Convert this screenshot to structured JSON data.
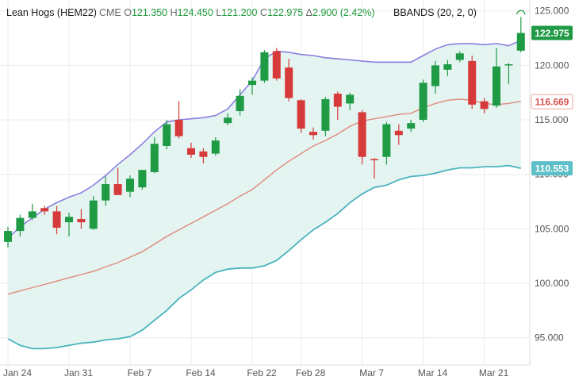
{
  "header": {
    "symbol": "Lean Hogs (HEM22)",
    "exchange": "CME",
    "open_key": "O",
    "open": "121.350",
    "high_key": "H",
    "high": "124.450",
    "low_key": "L",
    "low": "121.200",
    "close_key": "C",
    "close": "122.975",
    "change_key": "Δ",
    "change": "2.900 (2.42%)",
    "indicator": "BBANDS (20, 2, 0)"
  },
  "colors": {
    "up": "#1f9a45",
    "down": "#d63a3a",
    "upper_band": "#8c7ee0",
    "middle_band": "#e08a7c",
    "lower_band": "#49b3be",
    "band_fill": "#e4f4f1",
    "price_badge": "#1f9a45",
    "middle_badge_text": "#d9534f",
    "lower_badge": "#5dbfc7",
    "grid": "#ececec",
    "axis_text": "#555555"
  },
  "chart_data": {
    "type": "candlestick",
    "y_axis": {
      "min": 92.5,
      "max": 126,
      "ticks": [
        "95.000",
        "100.000",
        "105.000",
        "110.000",
        "115.000",
        "120.000",
        "125.000"
      ],
      "position": "right"
    },
    "x_axis": {
      "labels": [
        "Jan 24",
        "Jan 31",
        "Feb 7",
        "Feb 14",
        "Feb 22",
        "Feb 28",
        "Mar 7",
        "Mar 14",
        "Mar 21"
      ]
    },
    "grid": true,
    "candles": [
      {
        "date": "Jan 24",
        "o": 103.8,
        "h": 105.2,
        "l": 103.3,
        "c": 104.8
      },
      {
        "date": "Jan 25",
        "o": 104.8,
        "h": 106.3,
        "l": 104.3,
        "c": 106.0
      },
      {
        "date": "Jan 26",
        "o": 106.0,
        "h": 107.3,
        "l": 105.8,
        "c": 106.6
      },
      {
        "date": "Jan 27",
        "o": 106.9,
        "h": 107.1,
        "l": 106.3,
        "c": 106.6
      },
      {
        "date": "Jan 28",
        "o": 106.6,
        "h": 107.1,
        "l": 104.5,
        "c": 105.1
      },
      {
        "date": "Jan 31",
        "o": 105.6,
        "h": 106.5,
        "l": 104.3,
        "c": 106.1
      },
      {
        "date": "Feb 1",
        "o": 105.9,
        "h": 106.8,
        "l": 105.0,
        "c": 105.6
      },
      {
        "date": "Feb 2",
        "o": 105.0,
        "h": 108.0,
        "l": 104.9,
        "c": 107.6
      },
      {
        "date": "Feb 3",
        "o": 107.6,
        "h": 109.8,
        "l": 107.1,
        "c": 109.1
      },
      {
        "date": "Feb 4",
        "o": 109.1,
        "h": 110.6,
        "l": 108.1,
        "c": 108.1
      },
      {
        "date": "Feb 7",
        "o": 108.4,
        "h": 109.9,
        "l": 107.9,
        "c": 109.6
      },
      {
        "date": "Feb 8",
        "o": 108.8,
        "h": 110.4,
        "l": 108.6,
        "c": 110.4
      },
      {
        "date": "Feb 9",
        "o": 110.2,
        "h": 113.4,
        "l": 110.1,
        "c": 112.8
      },
      {
        "date": "Feb 10",
        "o": 112.6,
        "h": 115.0,
        "l": 112.3,
        "c": 114.6
      },
      {
        "date": "Feb 11",
        "o": 115.0,
        "h": 116.7,
        "l": 113.3,
        "c": 113.5
      },
      {
        "date": "Feb 14",
        "o": 112.4,
        "h": 112.9,
        "l": 111.5,
        "c": 111.8
      },
      {
        "date": "Feb 15",
        "o": 112.1,
        "h": 112.4,
        "l": 111.0,
        "c": 111.6
      },
      {
        "date": "Feb 16",
        "o": 111.9,
        "h": 113.4,
        "l": 111.7,
        "c": 113.1
      },
      {
        "date": "Feb 17",
        "o": 114.7,
        "h": 115.6,
        "l": 114.5,
        "c": 115.2
      },
      {
        "date": "Feb 18",
        "o": 115.8,
        "h": 117.8,
        "l": 115.4,
        "c": 117.2
      },
      {
        "date": "Feb 22",
        "o": 118.2,
        "h": 118.9,
        "l": 117.3,
        "c": 118.6
      },
      {
        "date": "Feb 23",
        "o": 118.6,
        "h": 121.4,
        "l": 118.4,
        "c": 121.2
      },
      {
        "date": "Feb 24",
        "o": 121.3,
        "h": 121.6,
        "l": 118.6,
        "c": 118.8
      },
      {
        "date": "Feb 25",
        "o": 119.8,
        "h": 120.6,
        "l": 116.7,
        "c": 117.0
      },
      {
        "date": "Feb 28",
        "o": 116.8,
        "h": 116.9,
        "l": 113.8,
        "c": 114.2
      },
      {
        "date": "Mar 1",
        "o": 113.9,
        "h": 114.3,
        "l": 113.2,
        "c": 113.6
      },
      {
        "date": "Mar 2",
        "o": 114.0,
        "h": 117.1,
        "l": 113.5,
        "c": 116.9
      },
      {
        "date": "Mar 3",
        "o": 117.4,
        "h": 117.6,
        "l": 115.0,
        "c": 116.2
      },
      {
        "date": "Mar 4",
        "o": 116.5,
        "h": 117.5,
        "l": 115.9,
        "c": 117.3
      },
      {
        "date": "Mar 7",
        "o": 115.7,
        "h": 115.9,
        "l": 110.9,
        "c": 111.6
      },
      {
        "date": "Mar 8",
        "o": 111.4,
        "h": 111.5,
        "l": 109.6,
        "c": 111.3
      },
      {
        "date": "Mar 9",
        "o": 111.6,
        "h": 114.8,
        "l": 110.9,
        "c": 114.6
      },
      {
        "date": "Mar 10",
        "o": 114.0,
        "h": 114.6,
        "l": 112.7,
        "c": 113.6
      },
      {
        "date": "Mar 11",
        "o": 114.2,
        "h": 115.0,
        "l": 113.9,
        "c": 114.7
      },
      {
        "date": "Mar 14",
        "o": 115.0,
        "h": 118.7,
        "l": 114.8,
        "c": 118.4
      },
      {
        "date": "Mar 15",
        "o": 118.1,
        "h": 120.4,
        "l": 117.4,
        "c": 120.0
      },
      {
        "date": "Mar 16",
        "o": 119.6,
        "h": 120.5,
        "l": 119.0,
        "c": 120.1
      },
      {
        "date": "Mar 17",
        "o": 120.5,
        "h": 121.3,
        "l": 120.3,
        "c": 121.1
      },
      {
        "date": "Mar 18",
        "o": 120.4,
        "h": 120.9,
        "l": 116.0,
        "c": 116.4
      },
      {
        "date": "Mar 21",
        "o": 116.7,
        "h": 117.0,
        "l": 115.6,
        "c": 116.0
      },
      {
        "date": "Mar 22",
        "o": 116.3,
        "h": 121.6,
        "l": 116.1,
        "c": 119.9
      },
      {
        "date": "Mar 23",
        "o": 120.0,
        "h": 120.2,
        "l": 118.3,
        "c": 120.1
      },
      {
        "date": "Mar 24",
        "o": 121.35,
        "h": 124.45,
        "l": 121.2,
        "c": 122.975
      }
    ],
    "bbands": {
      "upper": [
        104.1,
        105.2,
        106.0,
        106.8,
        107.4,
        107.9,
        108.3,
        109.0,
        109.9,
        110.9,
        111.8,
        112.8,
        113.9,
        114.8,
        115.0,
        115.1,
        115.2,
        115.4,
        116.0,
        117.3,
        118.6,
        120.6,
        121.3,
        121.2,
        121.0,
        120.9,
        120.7,
        120.6,
        120.5,
        120.4,
        120.3,
        120.3,
        120.3,
        120.3,
        120.9,
        121.5,
        121.9,
        122.0,
        122.0,
        121.9,
        122.0,
        121.8,
        122.3
      ],
      "middle": [
        99.0,
        99.3,
        99.6,
        99.9,
        100.2,
        100.5,
        100.8,
        101.1,
        101.5,
        101.9,
        102.4,
        102.9,
        103.6,
        104.3,
        104.9,
        105.5,
        106.1,
        106.7,
        107.3,
        108.0,
        108.6,
        109.5,
        110.4,
        111.2,
        111.9,
        112.6,
        113.1,
        113.7,
        114.4,
        114.9,
        115.1,
        115.3,
        115.5,
        115.6,
        116.1,
        116.5,
        116.8,
        116.9,
        116.8,
        116.5,
        116.4,
        116.5,
        116.7
      ],
      "lower": [
        94.9,
        94.3,
        94.0,
        94.0,
        94.1,
        94.3,
        94.5,
        94.6,
        94.8,
        94.9,
        95.1,
        95.7,
        96.6,
        97.5,
        98.6,
        99.4,
        100.3,
        101.0,
        101.3,
        101.4,
        101.4,
        101.6,
        102.1,
        103.0,
        104.0,
        104.9,
        105.6,
        106.4,
        107.4,
        108.2,
        108.8,
        109.0,
        109.5,
        109.8,
        109.9,
        110.1,
        110.4,
        110.6,
        110.6,
        110.7,
        110.7,
        110.8,
        110.553
      ]
    },
    "last_values": {
      "close": "122.975",
      "middle": "116.669",
      "lower": "110.553"
    }
  }
}
